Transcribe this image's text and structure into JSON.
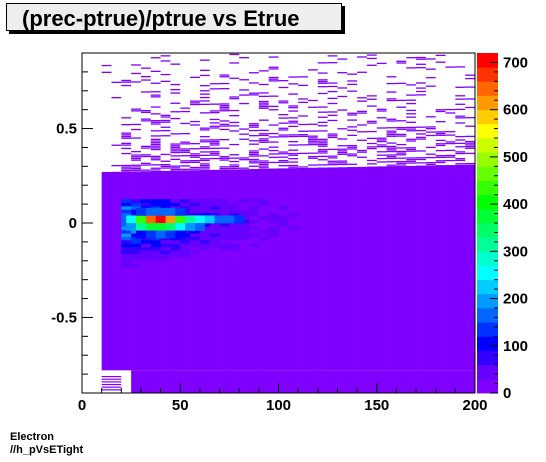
{
  "chart_data": {
    "type": "heatmap",
    "title": "(prec-ptrue)/ptrue vs Etrue",
    "xlim": [
      0,
      200
    ],
    "ylim": [
      -0.9,
      0.9
    ],
    "x_ticks": [
      "0",
      "50",
      "100",
      "150",
      "200"
    ],
    "y_ticks": [
      "-0.5",
      "0",
      "0.5"
    ],
    "colorbar": {
      "min": 0,
      "max": 720,
      "ticks": [
        "0",
        "100",
        "200",
        "300",
        "400",
        "500",
        "600",
        "700"
      ]
    },
    "grid": false,
    "palette": [
      "#7f00ff",
      "#6600ff",
      "#3300ff",
      "#0000ff",
      "#0033ff",
      "#0066ff",
      "#0099ff",
      "#00ccff",
      "#00ffff",
      "#00ffcc",
      "#00ff99",
      "#00ff66",
      "#00ff33",
      "#00ff00",
      "#33ff00",
      "#66ff00",
      "#99ff00",
      "#ccff00",
      "#ffff00",
      "#ffcc00",
      "#ff9900",
      "#ff6600",
      "#ff3300",
      "#ff0000"
    ],
    "peak": {
      "x": 40,
      "y": 0.02,
      "value": 720
    },
    "x_populated_range": [
      10,
      200
    ],
    "hot_cells": [
      {
        "x": 25,
        "y": 0.02,
        "value": 240
      },
      {
        "x": 30,
        "y": 0.02,
        "value": 430
      },
      {
        "x": 35,
        "y": 0.02,
        "value": 640
      },
      {
        "x": 40,
        "y": 0.02,
        "value": 720
      },
      {
        "x": 45,
        "y": 0.02,
        "value": 600
      },
      {
        "x": 50,
        "y": 0.02,
        "value": 430
      },
      {
        "x": 55,
        "y": 0.02,
        "value": 310
      },
      {
        "x": 60,
        "y": 0.02,
        "value": 240
      },
      {
        "x": 65,
        "y": 0.02,
        "value": 210
      },
      {
        "x": 70,
        "y": 0.02,
        "value": 170
      },
      {
        "x": 75,
        "y": 0.02,
        "value": 150
      },
      {
        "x": 80,
        "y": 0.02,
        "value": 120
      },
      {
        "x": 25,
        "y": -0.02,
        "value": 180
      },
      {
        "x": 30,
        "y": -0.02,
        "value": 300
      },
      {
        "x": 35,
        "y": -0.02,
        "value": 360
      },
      {
        "x": 40,
        "y": -0.02,
        "value": 380
      },
      {
        "x": 45,
        "y": -0.02,
        "value": 330
      },
      {
        "x": 50,
        "y": -0.02,
        "value": 250
      },
      {
        "x": 55,
        "y": -0.02,
        "value": 190
      },
      {
        "x": 60,
        "y": -0.02,
        "value": 160
      },
      {
        "x": 30,
        "y": 0.06,
        "value": 120
      },
      {
        "x": 35,
        "y": 0.06,
        "value": 160
      },
      {
        "x": 40,
        "y": 0.06,
        "value": 170
      },
      {
        "x": 45,
        "y": 0.06,
        "value": 150
      },
      {
        "x": 50,
        "y": 0.06,
        "value": 120
      },
      {
        "x": 30,
        "y": -0.06,
        "value": 110
      },
      {
        "x": 35,
        "y": -0.06,
        "value": 140
      },
      {
        "x": 40,
        "y": -0.06,
        "value": 150
      },
      {
        "x": 45,
        "y": -0.06,
        "value": 130
      },
      {
        "x": 50,
        "y": -0.06,
        "value": 110
      }
    ]
  },
  "footer": {
    "line1": "Electron",
    "line2": "//h_pVsETight"
  }
}
